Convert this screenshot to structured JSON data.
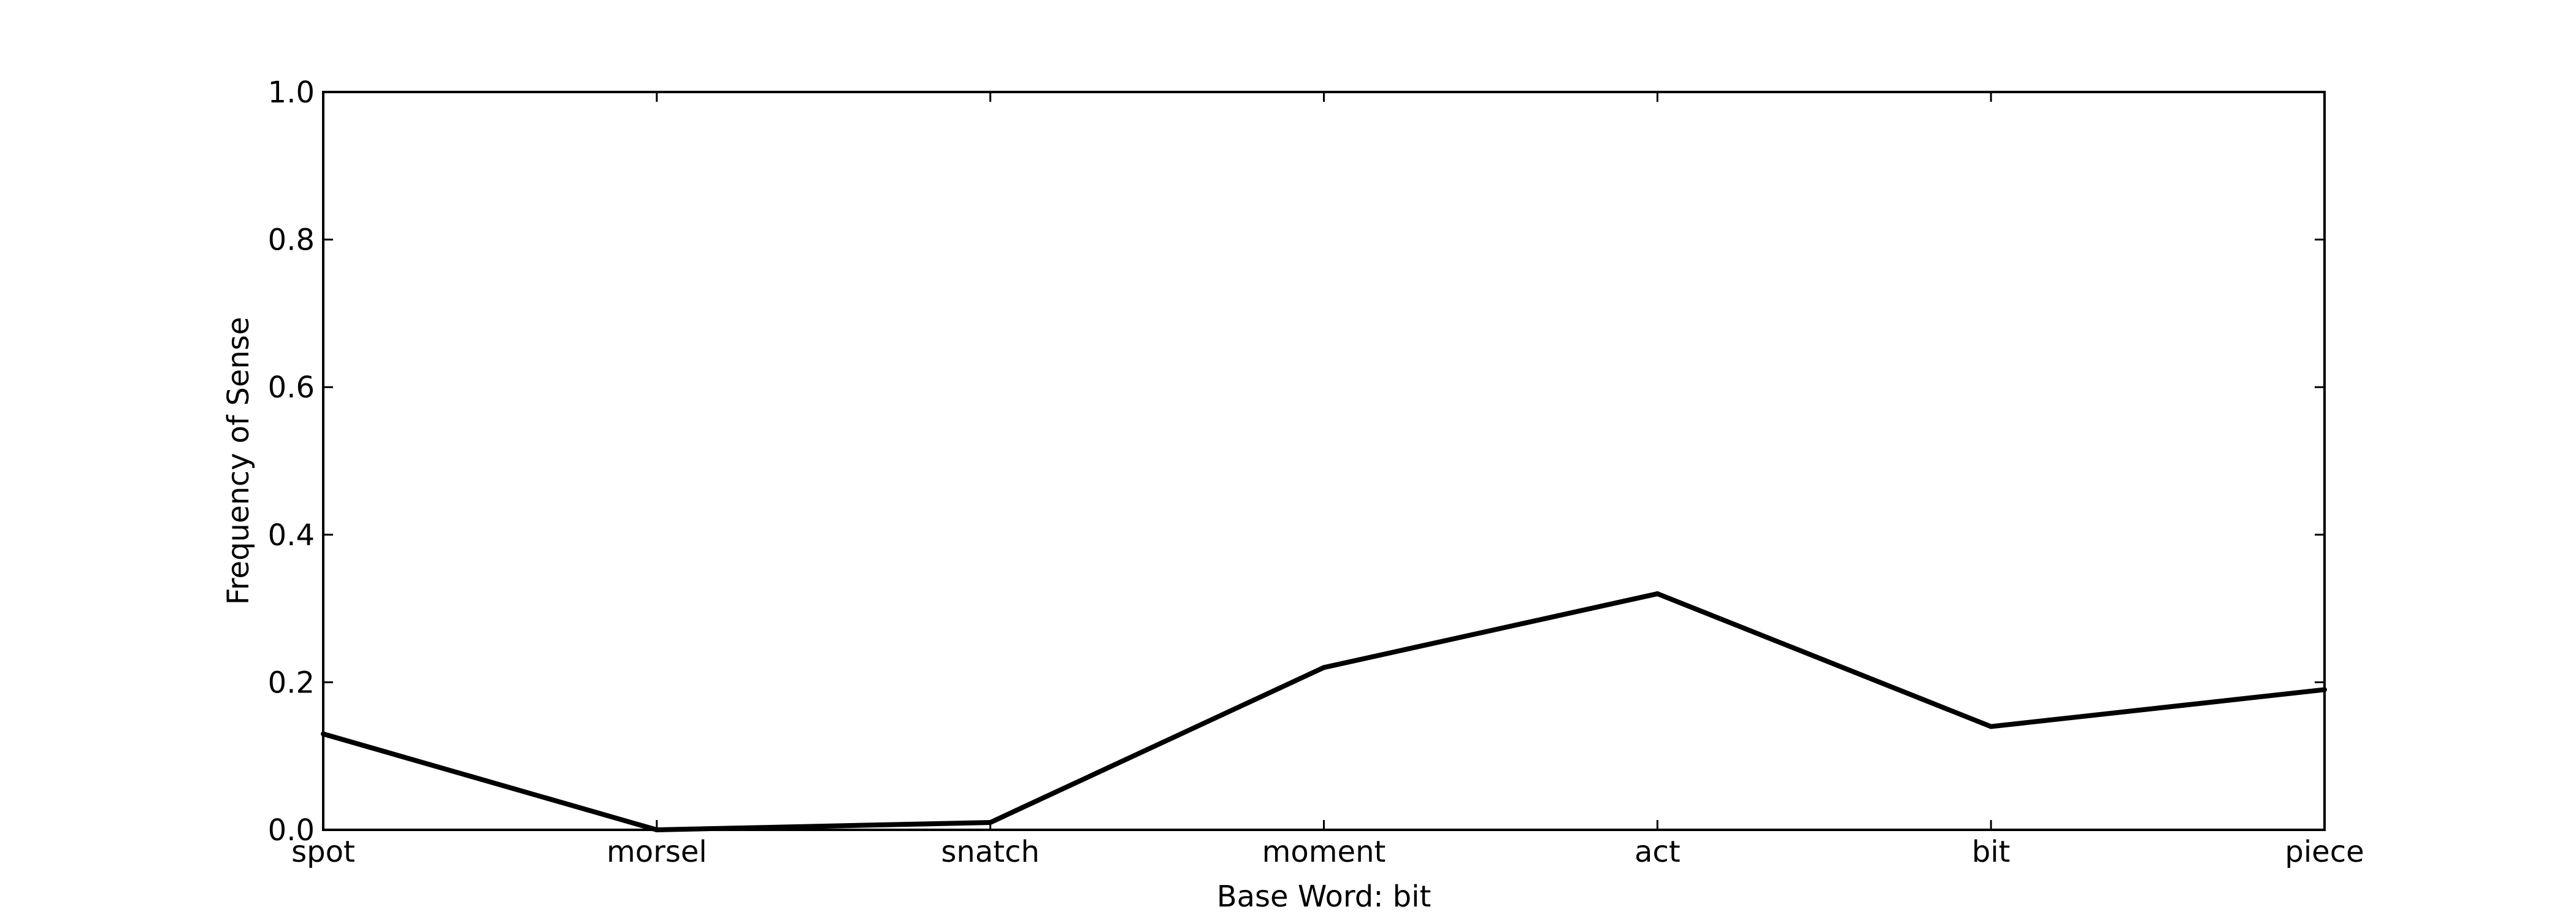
{
  "chart_data": {
    "type": "line",
    "title": "",
    "xlabel": "Base Word: bit",
    "ylabel": "Frequency of Sense",
    "categories": [
      "spot",
      "morsel",
      "snatch",
      "moment",
      "act",
      "bit",
      "piece"
    ],
    "series": [
      {
        "values": [
          0.13,
          0.0,
          0.01,
          0.22,
          0.32,
          0.14,
          0.19
        ]
      }
    ],
    "ylim": [
      0.0,
      1.0
    ],
    "yticks": [
      "0.0",
      "0.2",
      "0.4",
      "0.6",
      "0.8",
      "1.0"
    ],
    "grid": false,
    "line_color": "#000000"
  }
}
